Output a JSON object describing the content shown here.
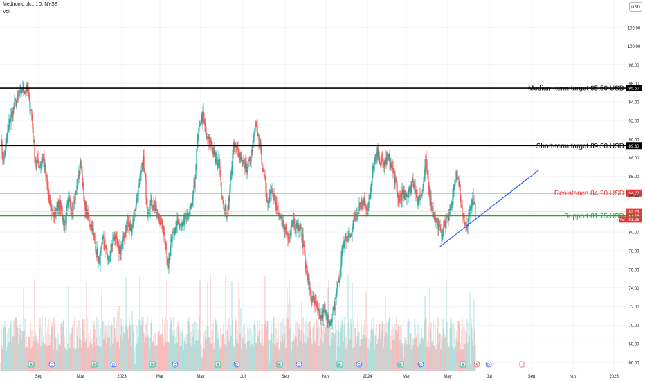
{
  "header": {
    "symbol": "Medtronic plc., 1D, NYSE",
    "vol_label": "Vol",
    "currency": "USD"
  },
  "chart_data": {
    "type": "candlestick",
    "ylim": [
      65,
      105
    ],
    "y_ticks": [
      "102.00",
      "100.00",
      "98.00",
      "96.00",
      "94.00",
      "92.00",
      "90.00",
      "88.00",
      "86.00",
      "84.00",
      "82.00",
      "80.00",
      "78.00",
      "76.00",
      "74.00",
      "72.00",
      "70.00",
      "68.00",
      "66.00"
    ],
    "x_ticks": [
      {
        "label": "Sep",
        "index": 55
      },
      {
        "label": "Nov",
        "index": 115
      },
      {
        "label": "2023",
        "index": 175
      },
      {
        "label": "Mar",
        "index": 230
      },
      {
        "label": "May",
        "index": 289
      },
      {
        "label": "Jul",
        "index": 350
      },
      {
        "label": "Sep",
        "index": 411
      },
      {
        "label": "Nov",
        "index": 470
      },
      {
        "label": "2024",
        "index": 530
      },
      {
        "label": "Mar",
        "index": 586
      },
      {
        "label": "May",
        "index": 646
      },
      {
        "label": "Jul",
        "index": 706
      },
      {
        "label": "Sep",
        "index": 767
      },
      {
        "label": "Nov",
        "index": 827
      },
      {
        "label": "2025",
        "index": 886
      }
    ],
    "anchors": [
      [
        0,
        90.1
      ],
      [
        4,
        87.3
      ],
      [
        12,
        91.8
      ],
      [
        22,
        94.0
      ],
      [
        30,
        95.2
      ],
      [
        38,
        95.4
      ],
      [
        44,
        93.0
      ],
      [
        50,
        87.7
      ],
      [
        56,
        87.2
      ],
      [
        62,
        88.0
      ],
      [
        66,
        85.6
      ],
      [
        72,
        82.4
      ],
      [
        78,
        81.8
      ],
      [
        85,
        83.4
      ],
      [
        92,
        80.6
      ],
      [
        98,
        83.2
      ],
      [
        104,
        82.5
      ],
      [
        110,
        84.8
      ],
      [
        116,
        87.9
      ],
      [
        120,
        83.4
      ],
      [
        126,
        81.5
      ],
      [
        132,
        80.6
      ],
      [
        136,
        78.8
      ],
      [
        142,
        76.6
      ],
      [
        148,
        79.2
      ],
      [
        156,
        76.9
      ],
      [
        164,
        79.8
      ],
      [
        170,
        77.8
      ],
      [
        176,
        78.7
      ],
      [
        182,
        81.0
      ],
      [
        188,
        80.2
      ],
      [
        194,
        82.5
      ],
      [
        200,
        84.9
      ],
      [
        206,
        87.9
      ],
      [
        212,
        82.4
      ],
      [
        218,
        83.2
      ],
      [
        224,
        82.5
      ],
      [
        230,
        81.3
      ],
      [
        236,
        79.8
      ],
      [
        242,
        76.5
      ],
      [
        248,
        80.0
      ],
      [
        254,
        80.9
      ],
      [
        260,
        80.3
      ],
      [
        266,
        81.6
      ],
      [
        272,
        81.8
      ],
      [
        276,
        82.8
      ],
      [
        280,
        85.1
      ],
      [
        284,
        89.6
      ],
      [
        288,
        91.8
      ],
      [
        292,
        92.5
      ],
      [
        298,
        89.9
      ],
      [
        304,
        89.6
      ],
      [
        310,
        87.7
      ],
      [
        316,
        87.6
      ],
      [
        320,
        83.5
      ],
      [
        326,
        81.8
      ],
      [
        330,
        83.6
      ],
      [
        336,
        89.0
      ],
      [
        342,
        88.8
      ],
      [
        350,
        87.6
      ],
      [
        356,
        86.8
      ],
      [
        362,
        88.2
      ],
      [
        368,
        91.3
      ],
      [
        374,
        89.9
      ],
      [
        380,
        86.1
      ],
      [
        386,
        83.3
      ],
      [
        392,
        84.9
      ],
      [
        398,
        82.6
      ],
      [
        404,
        81.3
      ],
      [
        410,
        80.6
      ],
      [
        416,
        79.1
      ],
      [
        422,
        81.6
      ],
      [
        428,
        80.5
      ],
      [
        434,
        80.2
      ],
      [
        438,
        78.3
      ],
      [
        442,
        75.9
      ],
      [
        448,
        72.9
      ],
      [
        452,
        72.7
      ],
      [
        458,
        71.3
      ],
      [
        462,
        70.8
      ],
      [
        468,
        71.4
      ],
      [
        472,
        70.9
      ],
      [
        478,
        70.0
      ],
      [
        482,
        72.1
      ],
      [
        486,
        73.9
      ],
      [
        490,
        75.3
      ],
      [
        494,
        78.7
      ],
      [
        500,
        79.3
      ],
      [
        506,
        80.0
      ],
      [
        512,
        81.5
      ],
      [
        518,
        83.0
      ],
      [
        524,
        83.4
      ],
      [
        530,
        82.5
      ],
      [
        534,
        84.0
      ],
      [
        538,
        86.9
      ],
      [
        544,
        88.5
      ],
      [
        550,
        87.4
      ],
      [
        556,
        87.5
      ],
      [
        560,
        88.2
      ],
      [
        566,
        86.7
      ],
      [
        570,
        85.6
      ],
      [
        574,
        83.6
      ],
      [
        580,
        84.1
      ],
      [
        586,
        83.7
      ],
      [
        590,
        84.7
      ],
      [
        596,
        85.4
      ],
      [
        602,
        83.6
      ],
      [
        606,
        83.9
      ],
      [
        610,
        84.1
      ],
      [
        614,
        87.7
      ],
      [
        618,
        85.4
      ],
      [
        622,
        82.8
      ],
      [
        628,
        81.4
      ],
      [
        632,
        80.9
      ],
      [
        636,
        79.5
      ],
      [
        640,
        80.6
      ],
      [
        646,
        81.5
      ],
      [
        650,
        82.6
      ],
      [
        654,
        84.3
      ],
      [
        658,
        86.0
      ],
      [
        662,
        85.4
      ],
      [
        666,
        82.6
      ],
      [
        670,
        80.9
      ],
      [
        674,
        80.9
      ],
      [
        678,
        82.3
      ],
      [
        682,
        84.0
      ],
      [
        686,
        82.2
      ]
    ],
    "volume_max": 14000000,
    "hlines": [
      {
        "label": "Medium-term target 95.50 USD",
        "value": 95.5,
        "color": "#000000",
        "badge": "95.50"
      },
      {
        "label": "Short-term target 89.30 USD",
        "value": 89.3,
        "color": "#000000",
        "badge": "89.30"
      },
      {
        "label": "Resistance 84.20 USD",
        "value": 84.2,
        "color": "#e53935",
        "badge": "84.20"
      },
      {
        "label": "Support 81.75 USD",
        "value": 81.75,
        "color": "#22a33b",
        "badge": "81.75"
      }
    ],
    "trendline": {
      "color": "#2962ff",
      "from": {
        "index": 634,
        "value": 78.4
      },
      "to": {
        "index": 778,
        "value": 86.7
      }
    },
    "price_tags": [
      {
        "value": 82.23,
        "text": "82.23",
        "color": "#e53935"
      },
      {
        "value": 81.36,
        "text": "81.36",
        "color": "#e53935",
        "prefix": "Vol"
      }
    ],
    "faint_line": {
      "value": 82.23,
      "color": "#f7c6c6"
    },
    "events": [
      {
        "index": 44,
        "kind": "E"
      },
      {
        "index": 74,
        "kind": "D"
      },
      {
        "index": 135,
        "kind": "E"
      },
      {
        "index": 163,
        "kind": "D"
      },
      {
        "index": 219,
        "kind": "E"
      },
      {
        "index": 252,
        "kind": "D"
      },
      {
        "index": 314,
        "kind": "E"
      },
      {
        "index": 341,
        "kind": "D"
      },
      {
        "index": 403,
        "kind": "E"
      },
      {
        "index": 431,
        "kind": "D"
      },
      {
        "index": 490,
        "kind": "E"
      },
      {
        "index": 518,
        "kind": "D"
      },
      {
        "index": 578,
        "kind": "E"
      },
      {
        "index": 607,
        "kind": "D"
      },
      {
        "index": 668,
        "kind": "E"
      },
      {
        "index": 688,
        "kind": "S"
      },
      {
        "index": 705,
        "kind": "D"
      },
      {
        "index": 753,
        "kind": "I"
      }
    ],
    "colors": {
      "up": "#26a69a",
      "down": "#ef5350",
      "vol_up": "#b2dfdb",
      "vol_down": "#f8bcbc",
      "grid": "#f0f3fa"
    }
  }
}
